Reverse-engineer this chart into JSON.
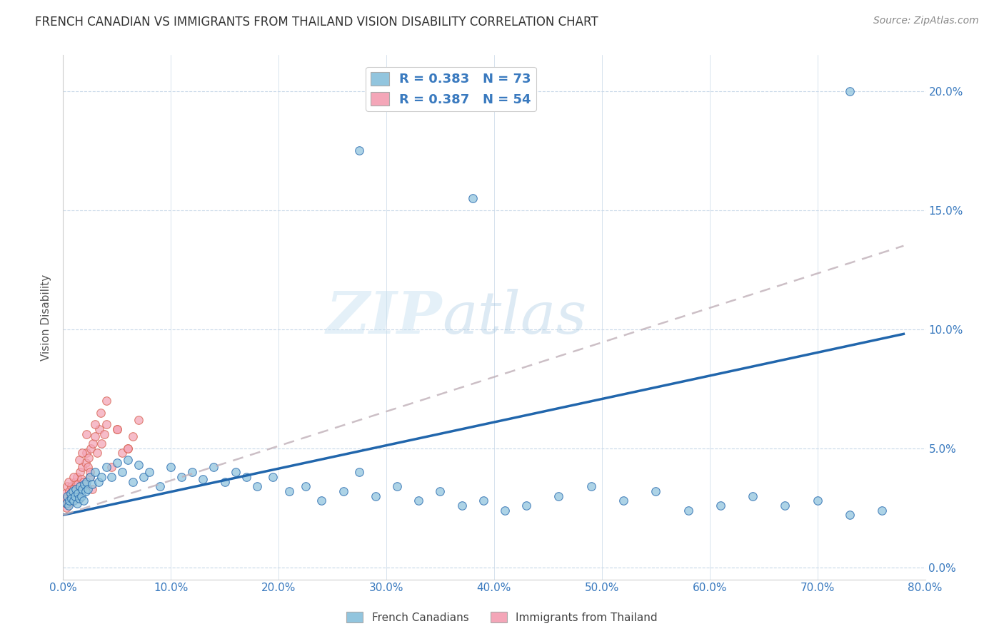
{
  "title": "FRENCH CANADIAN VS IMMIGRANTS FROM THAILAND VISION DISABILITY CORRELATION CHART",
  "source": "Source: ZipAtlas.com",
  "ylabel": "Vision Disability",
  "xlim": [
    0.0,
    0.8
  ],
  "ylim": [
    -0.005,
    0.215
  ],
  "legend1_R": "0.383",
  "legend1_N": "73",
  "legend2_R": "0.387",
  "legend2_N": "54",
  "blue_color": "#92c5de",
  "pink_color": "#f4a6b8",
  "blue_line_color": "#2166ac",
  "pink_line_color": "#d6604d",
  "watermark": "ZIPatlas",
  "title_fontsize": 12,
  "blue_line_x0": 0.0,
  "blue_line_y0": 0.022,
  "blue_line_x1": 0.78,
  "blue_line_y1": 0.098,
  "pink_line_x0": 0.0,
  "pink_line_y0": 0.022,
  "pink_line_x1": 0.78,
  "pink_line_y1": 0.135,
  "x_blue": [
    0.003,
    0.004,
    0.005,
    0.006,
    0.007,
    0.008,
    0.009,
    0.01,
    0.011,
    0.012,
    0.013,
    0.014,
    0.015,
    0.016,
    0.017,
    0.018,
    0.019,
    0.02,
    0.021,
    0.022,
    0.023,
    0.025,
    0.027,
    0.03,
    0.033,
    0.036,
    0.04,
    0.045,
    0.05,
    0.055,
    0.06,
    0.065,
    0.07,
    0.075,
    0.08,
    0.09,
    0.1,
    0.11,
    0.12,
    0.13,
    0.14,
    0.15,
    0.16,
    0.17,
    0.18,
    0.195,
    0.21,
    0.225,
    0.24,
    0.26,
    0.275,
    0.29,
    0.31,
    0.33,
    0.35,
    0.37,
    0.39,
    0.41,
    0.43,
    0.46,
    0.49,
    0.52,
    0.55,
    0.58,
    0.61,
    0.64,
    0.67,
    0.7,
    0.73,
    0.76,
    0.275,
    0.38,
    0.73
  ],
  "y_blue": [
    0.027,
    0.03,
    0.026,
    0.028,
    0.031,
    0.029,
    0.032,
    0.028,
    0.03,
    0.033,
    0.027,
    0.031,
    0.029,
    0.034,
    0.03,
    0.033,
    0.028,
    0.035,
    0.032,
    0.036,
    0.033,
    0.038,
    0.035,
    0.04,
    0.036,
    0.038,
    0.042,
    0.038,
    0.044,
    0.04,
    0.045,
    0.036,
    0.043,
    0.038,
    0.04,
    0.034,
    0.042,
    0.038,
    0.04,
    0.037,
    0.042,
    0.036,
    0.04,
    0.038,
    0.034,
    0.038,
    0.032,
    0.034,
    0.028,
    0.032,
    0.04,
    0.03,
    0.034,
    0.028,
    0.032,
    0.026,
    0.028,
    0.024,
    0.026,
    0.03,
    0.034,
    0.028,
    0.032,
    0.024,
    0.026,
    0.03,
    0.026,
    0.028,
    0.022,
    0.024,
    0.175,
    0.155,
    0.2
  ],
  "x_pink": [
    0.001,
    0.002,
    0.003,
    0.004,
    0.005,
    0.006,
    0.007,
    0.008,
    0.009,
    0.01,
    0.011,
    0.012,
    0.013,
    0.014,
    0.015,
    0.016,
    0.017,
    0.018,
    0.019,
    0.02,
    0.021,
    0.022,
    0.023,
    0.024,
    0.025,
    0.026,
    0.027,
    0.028,
    0.03,
    0.032,
    0.034,
    0.036,
    0.038,
    0.04,
    0.045,
    0.05,
    0.055,
    0.06,
    0.065,
    0.07,
    0.003,
    0.005,
    0.008,
    0.01,
    0.012,
    0.015,
    0.018,
    0.022,
    0.025,
    0.03,
    0.035,
    0.04,
    0.05,
    0.06
  ],
  "y_pink": [
    0.027,
    0.031,
    0.029,
    0.034,
    0.027,
    0.032,
    0.03,
    0.034,
    0.028,
    0.033,
    0.036,
    0.031,
    0.038,
    0.035,
    0.029,
    0.04,
    0.037,
    0.042,
    0.036,
    0.034,
    0.044,
    0.048,
    0.042,
    0.046,
    0.038,
    0.05,
    0.033,
    0.052,
    0.055,
    0.048,
    0.058,
    0.052,
    0.056,
    0.06,
    0.042,
    0.058,
    0.048,
    0.05,
    0.055,
    0.062,
    0.025,
    0.036,
    0.03,
    0.038,
    0.031,
    0.045,
    0.048,
    0.056,
    0.04,
    0.06,
    0.065,
    0.07,
    0.058,
    0.05
  ]
}
